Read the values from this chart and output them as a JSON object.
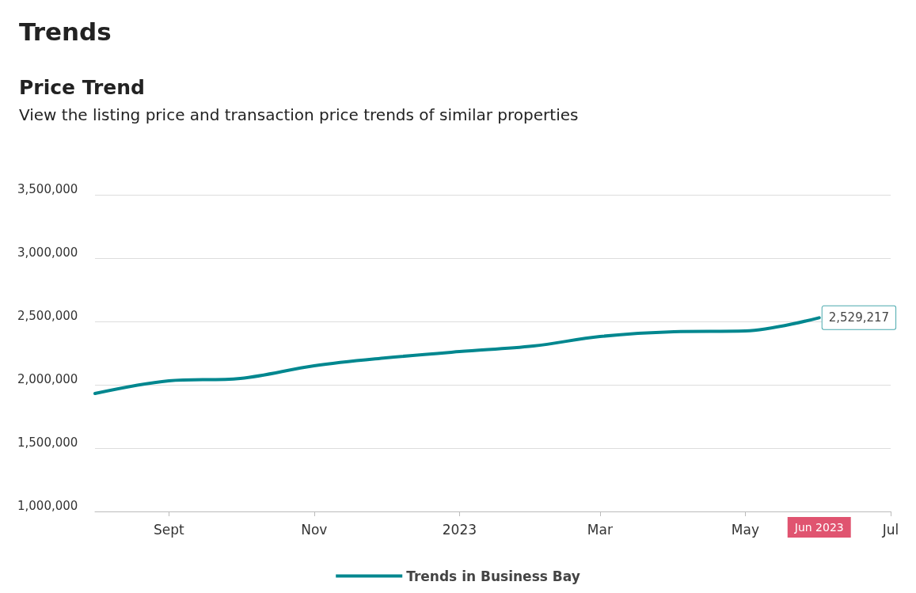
{
  "chart_data": {
    "type": "line",
    "title": "Price Trend",
    "subtitle": "View the listing price and transaction price trends of similar properties",
    "annotations": [
      "Trends",
      "Jun 2023"
    ],
    "x": [
      "2022-08-01",
      "2022-09-01",
      "2022-10-01",
      "2022-11-01",
      "2022-12-01",
      "2023-01-01",
      "2023-02-01",
      "2023-03-01",
      "2023-04-01",
      "2023-05-01",
      "2023-06-01"
    ],
    "series": [
      {
        "name": "Trends in Business Bay",
        "color": "#00878f",
        "values": [
          1931000,
          2031000,
          2050000,
          2150000,
          2212000,
          2262000,
          2306000,
          2381000,
          2419000,
          2425000,
          2529217
        ],
        "value_labels": [
          null,
          null,
          null,
          null,
          null,
          null,
          null,
          null,
          null,
          null,
          "2,529,217"
        ]
      }
    ],
    "xlim": [
      "2022-08-01",
      "2023-07-01"
    ],
    "xticks": [
      {
        "value": "2022-09-01",
        "label": "Sept"
      },
      {
        "value": "2022-11-01",
        "label": "Nov"
      },
      {
        "value": "2023-01-01",
        "label": "2023"
      },
      {
        "value": "2023-03-01",
        "label": "Mar"
      },
      {
        "value": "2023-05-01",
        "label": "May"
      },
      {
        "value": "2023-07-01",
        "label": "Jul"
      }
    ],
    "ylim": [
      1000000,
      3500000
    ],
    "yticks": [
      {
        "value": 1000000,
        "label": "1,000,000"
      },
      {
        "value": 1500000,
        "label": "1,500,000"
      },
      {
        "value": 2000000,
        "label": "2,000,000"
      },
      {
        "value": 2500000,
        "label": "2,500,000"
      },
      {
        "value": 3000000,
        "label": "3,000,000"
      },
      {
        "value": 3500000,
        "label": "3,500,000"
      }
    ],
    "grid": "y",
    "legend": "bottom",
    "marker": "none",
    "line_style": "solid"
  }
}
